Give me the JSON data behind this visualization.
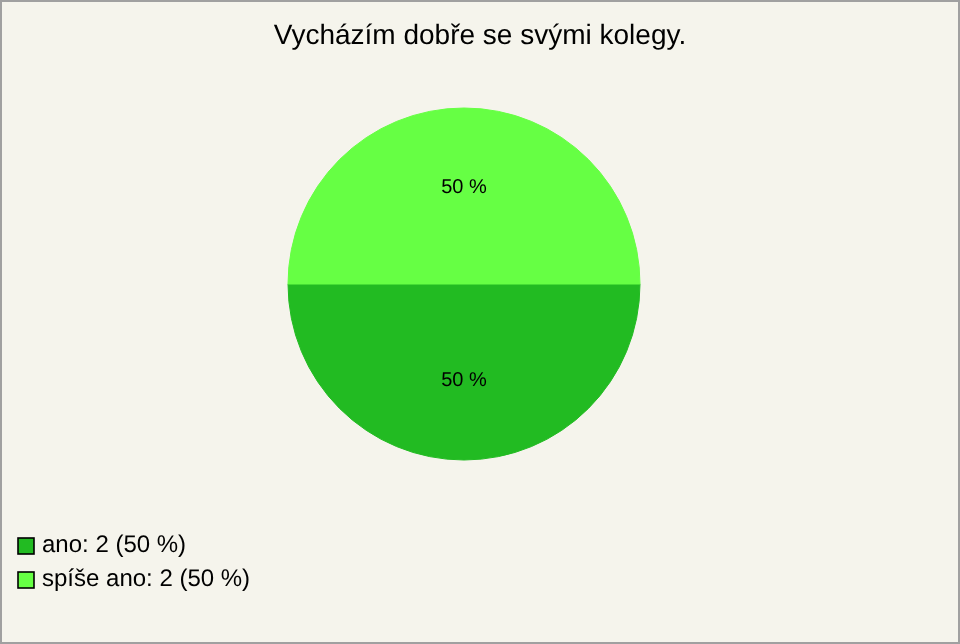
{
  "chart_data": {
    "type": "pie",
    "title": "Vycházím dobře se svými kolegy.",
    "categories": [
      "ano: 2 (50 %)",
      "spíše ano: 2 (50 %)"
    ],
    "values": [
      50,
      50
    ],
    "colors": [
      "#22bb22",
      "#66ff44"
    ],
    "value_labels": [
      "50 %",
      "50 %"
    ],
    "legend": "bottom left"
  }
}
